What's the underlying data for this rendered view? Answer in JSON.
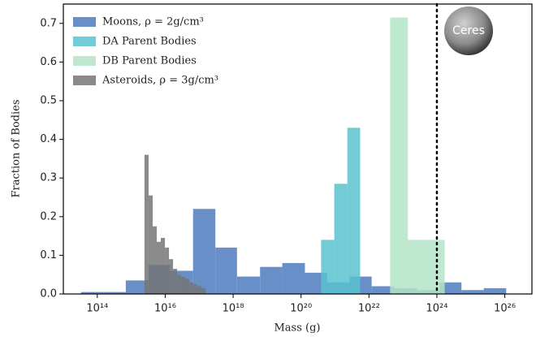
{
  "chart_data": {
    "type": "histogram",
    "xlabel": "Mass (g)",
    "ylabel": "Fraction of Bodies",
    "xscale": "log",
    "xlim": [
      10000000000000.0,
      6.3e+26
    ],
    "ylim": [
      0,
      0.75
    ],
    "xticks": [
      {
        "value": 100000000000000.0,
        "label": "10¹⁴"
      },
      {
        "value": 1e+16,
        "label": "10¹⁶"
      },
      {
        "value": 1e+18,
        "label": "10¹⁸"
      },
      {
        "value": 1e+20,
        "label": "10²⁰"
      },
      {
        "value": 1e+22,
        "label": "10²²"
      },
      {
        "value": 1e+24,
        "label": "10²⁴"
      },
      {
        "value": 1e+26,
        "label": "10²⁶"
      }
    ],
    "yticks": [
      {
        "value": 0,
        "label": "0.0"
      },
      0.1,
      0.2,
      0.3,
      0.4,
      0.5,
      0.6,
      0.7
    ],
    "legend_position": "upper left",
    "vline": 1e+24,
    "annotation": "Ceres",
    "series": [
      {
        "name": "Moons, ρ = 2g/cm³",
        "color": "#4f7bbf",
        "bins": [
          33000000000000.0,
          150000000000000.0,
          690000000000000.0,
          3200000000000000.0,
          1.4e+16,
          6.6e+16,
          3e+17,
          1.3e+18,
          6.2e+18,
          2.8e+19,
          1.3e+20,
          5.9e+20,
          2.7e+21,
          1.2e+22,
          5.6e+22,
          2.6e+23,
          1.2e+24,
          5.3e+24,
          2.4e+25,
          1.1e+26
        ],
        "values": [
          0.005,
          0.005,
          0.035,
          0.075,
          0.06,
          0.22,
          0.12,
          0.045,
          0.07,
          0.08,
          0.055,
          0.03,
          0.045,
          0.02,
          0.015,
          0.01,
          0.03,
          0.01,
          0.015
        ]
      },
      {
        "name": "DA Parent Bodies",
        "color": "#5bc2cf",
        "bins": [
          3.9e+20,
          9.5e+20,
          2.3e+21,
          5.5e+21
        ],
        "values": [
          0.14,
          0.285,
          0.43
        ]
      },
      {
        "name": "DB Parent Bodies",
        "color": "#b4e4c8",
        "bins": [
          4.2e+22,
          1.4e+23,
          5e+23,
          1.7e+24
        ],
        "values": [
          0.715,
          0.14,
          0.14
        ]
      },
      {
        "name": "Asteroids, ρ = 3g/cm³",
        "color": "#767676",
        "bins": [
          2450000000000000.0,
          3240000000000000.0,
          4270000000000000.0,
          5620000000000000.0,
          7410000000000000.0,
          9800000000000000.0,
          1.29e+16,
          1.7e+16,
          2.24e+16,
          2.95e+16,
          3.89e+16,
          5.13e+16,
          6.76e+16,
          8.91e+16,
          1.17e+17,
          1.55e+17
        ],
        "values": [
          0.36,
          0.255,
          0.175,
          0.135,
          0.145,
          0.12,
          0.09,
          0.065,
          0.05,
          0.045,
          0.04,
          0.03,
          0.025,
          0.02,
          0.015
        ]
      }
    ]
  }
}
